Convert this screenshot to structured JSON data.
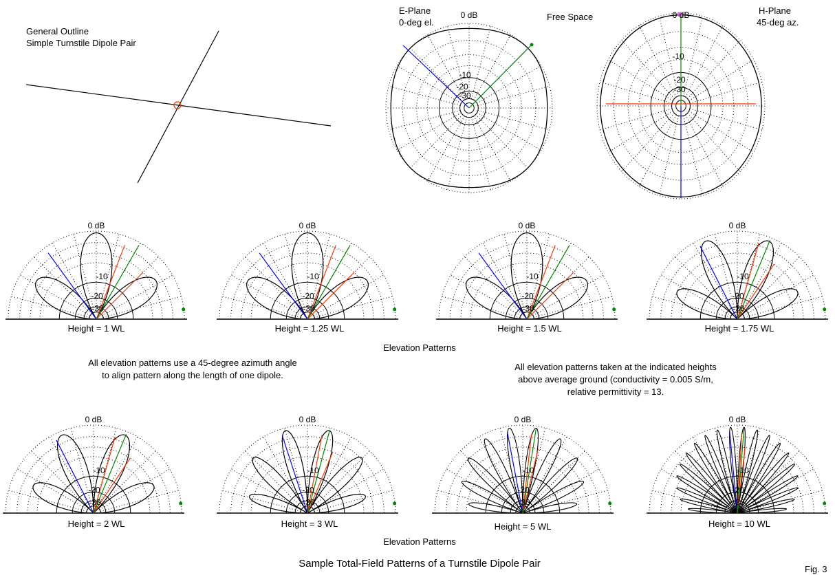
{
  "outline": {
    "line1": "General Outline",
    "line2": "Simple Turnstile Dipole Pair"
  },
  "free_space": {
    "label": "Free Space",
    "e_plane": {
      "line1": "E-Plane",
      "line2": "0-deg el."
    },
    "h_plane": {
      "line1": "H-Plane",
      "line2": "45-deg az."
    }
  },
  "scale": {
    "db0": "0 dB",
    "db10": "-10",
    "db20": "-20",
    "db30": "-30"
  },
  "elevation_row1": {
    "heights": [
      "Height = 1 WL",
      "Height = 1.25 WL",
      "Height = 1.5 WL",
      "Height = 1.75 WL"
    ],
    "caption": "Elevation Patterns"
  },
  "elevation_row2": {
    "heights": [
      "Height = 2 WL",
      "Height = 3 WL",
      "Height = 5 WL",
      "Height = 10 WL"
    ],
    "caption": "Elevation Patterns"
  },
  "notes": {
    "left_line1": "All elevation patterns use a 45-degree azimuth angle",
    "left_line2": "to align pattern along the length of one dipole.",
    "right_line1": "All elevation patterns taken at the indicated heights",
    "right_line2": "above average ground (conductivity = 0.005 S/m,",
    "right_line3": "relative permittivity = 13."
  },
  "title": "Sample Total-Field Patterns of a Turnstile Dipole Pair",
  "fig": "Fig. 3",
  "colors": {
    "blue": "#0000ff",
    "orange": "#ff3300",
    "green": "#008800",
    "grid": "#000000"
  },
  "elevation_lobes": [
    {
      "height_wl": 1,
      "lobes": 3
    },
    {
      "height_wl": 1.25,
      "lobes": 3
    },
    {
      "height_wl": 1.5,
      "lobes": 3
    },
    {
      "height_wl": 1.75,
      "lobes": 4
    },
    {
      "height_wl": 2,
      "lobes": 4
    },
    {
      "height_wl": 3,
      "lobes": 6
    },
    {
      "height_wl": 5,
      "lobes": 10
    },
    {
      "height_wl": 10,
      "lobes": 20
    }
  ]
}
